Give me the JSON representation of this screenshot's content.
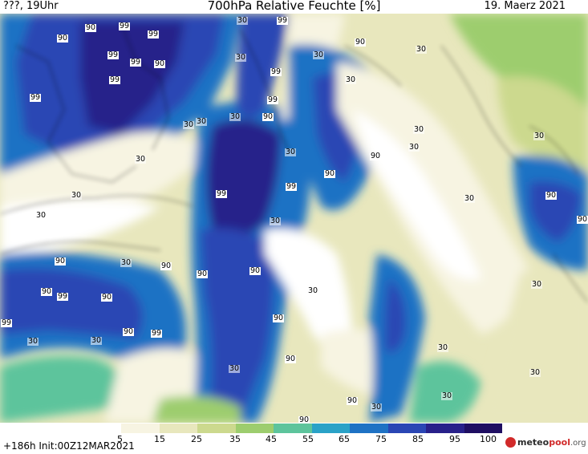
{
  "header": {
    "left_label": "???, 19Uhr",
    "title": "700hPa Relative Feuchte [%]",
    "date": "19. Maerz 2021"
  },
  "colors": {
    "c5": "#ffffff",
    "c15": "#f7f4e2",
    "c25": "#e8e7bd",
    "c35": "#ccd98e",
    "c45": "#9dcd6e",
    "c55": "#5dc49c",
    "c65": "#2aa2c7",
    "c75": "#1e72c4",
    "c85": "#2a46b4",
    "c95": "#28208a",
    "c100": "#1f0e62"
  },
  "colorbar": {
    "ticks": [
      "5",
      "15",
      "25",
      "35",
      "45",
      "55",
      "65",
      "75",
      "85",
      "95",
      "100"
    ]
  },
  "contour_labels": [
    {
      "text": "99",
      "tone": "dark"
    },
    {
      "text": "90",
      "tone": "dark"
    },
    {
      "text": "99",
      "tone": "dark"
    },
    {
      "text": "90",
      "tone": "dark"
    },
    {
      "text": "99",
      "tone": "dark"
    },
    {
      "text": "99",
      "tone": "dark"
    },
    {
      "text": "99",
      "tone": "dark"
    },
    {
      "text": "90",
      "tone": "dark"
    },
    {
      "text": "30",
      "tone": "light"
    },
    {
      "text": "30",
      "tone": "light"
    },
    {
      "text": "30",
      "tone": "light"
    },
    {
      "text": "99",
      "tone": "dark"
    },
    {
      "text": "90",
      "tone": "dark"
    },
    {
      "text": "30",
      "tone": "light"
    },
    {
      "text": "30",
      "tone": "light"
    },
    {
      "text": "99",
      "tone": "dark"
    },
    {
      "text": "99",
      "tone": "dark"
    },
    {
      "text": "99",
      "tone": "dark"
    },
    {
      "text": "30",
      "tone": "light"
    },
    {
      "text": "90",
      "tone": "dark"
    },
    {
      "text": "30",
      "tone": "light"
    },
    {
      "text": "30",
      "tone": "light"
    },
    {
      "text": "30",
      "tone": "light"
    },
    {
      "text": "30",
      "tone": "light"
    },
    {
      "text": "90",
      "tone": "dark"
    },
    {
      "text": "30",
      "tone": "light"
    },
    {
      "text": "30",
      "tone": "light"
    },
    {
      "text": "30",
      "tone": "light"
    },
    {
      "text": "99",
      "tone": "dark"
    },
    {
      "text": "90",
      "tone": "dark"
    },
    {
      "text": "30",
      "tone": "light"
    },
    {
      "text": "30",
      "tone": "light"
    },
    {
      "text": "99",
      "tone": "dark"
    },
    {
      "text": "30",
      "tone": "light"
    },
    {
      "text": "90",
      "tone": "dark"
    },
    {
      "text": "30",
      "tone": "light"
    },
    {
      "text": "90",
      "tone": "dark"
    },
    {
      "text": "90",
      "tone": "dark"
    },
    {
      "text": "30",
      "tone": "light"
    },
    {
      "text": "90",
      "tone": "dark"
    },
    {
      "text": "30",
      "tone": "light"
    },
    {
      "text": "99",
      "tone": "dark"
    },
    {
      "text": "30",
      "tone": "light"
    },
    {
      "text": "90",
      "tone": "dark"
    },
    {
      "text": "90",
      "tone": "dark"
    },
    {
      "text": "99",
      "tone": "dark"
    },
    {
      "text": "99",
      "tone": "dark"
    },
    {
      "text": "90",
      "tone": "dark"
    },
    {
      "text": "90",
      "tone": "dark"
    },
    {
      "text": "30",
      "tone": "light"
    },
    {
      "text": "30",
      "tone": "light"
    },
    {
      "text": "30",
      "tone": "light"
    },
    {
      "text": "90",
      "tone": "dark"
    },
    {
      "text": "30",
      "tone": "light"
    },
    {
      "text": "90",
      "tone": "dark"
    },
    {
      "text": "30",
      "tone": "light"
    },
    {
      "text": "30",
      "tone": "light"
    },
    {
      "text": "90",
      "tone": "dark"
    },
    {
      "text": "30",
      "tone": "light"
    },
    {
      "text": "90",
      "tone": "dark"
    },
    {
      "text": "90",
      "tone": "dark"
    }
  ],
  "footer": {
    "run_info": "+186h Init:00Z12MAR2021",
    "logo_main": "meteo",
    "logo_accent": "pool",
    "logo_domain": ".org"
  }
}
